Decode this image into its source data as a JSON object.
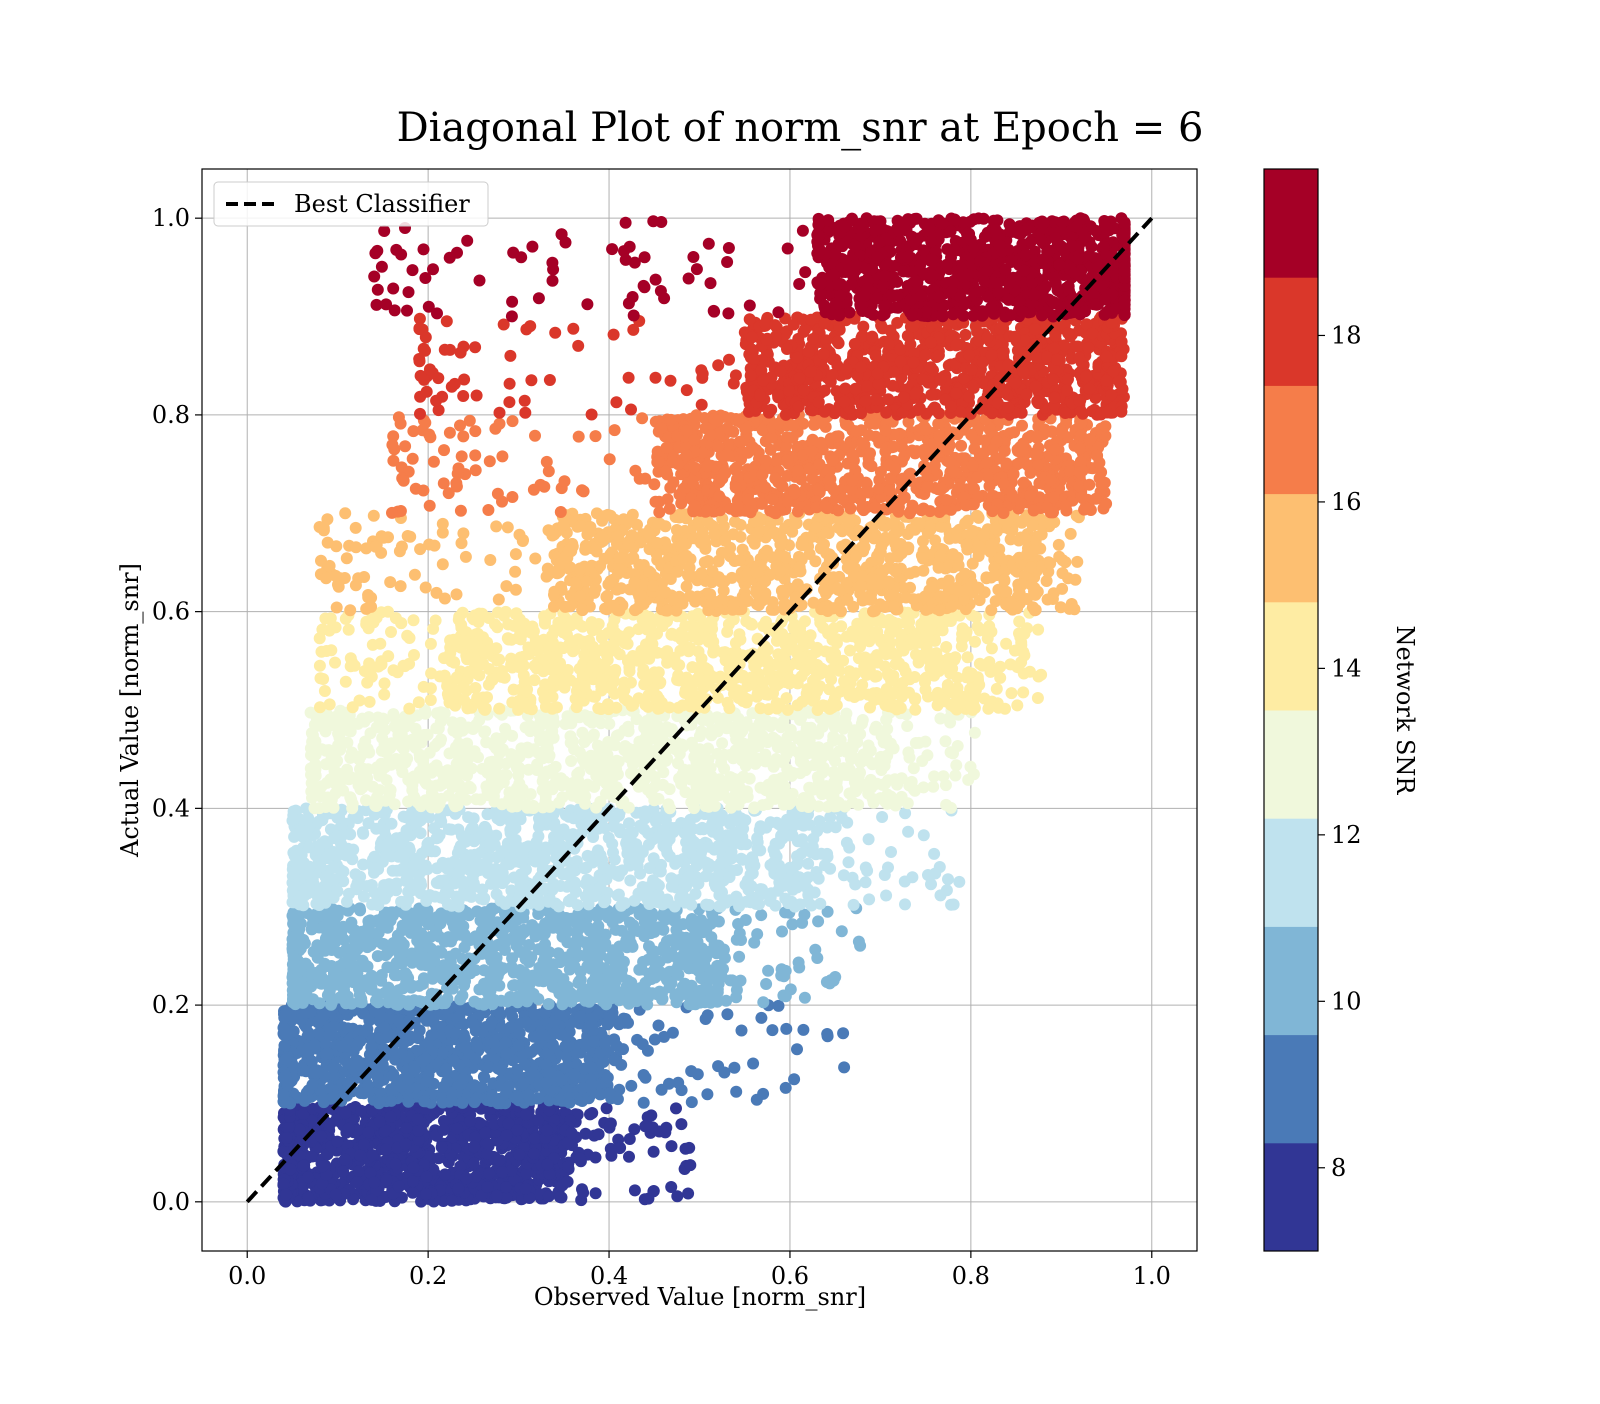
{
  "chart_data": {
    "type": "scatter",
    "title": "Diagonal Plot of norm_snr at Epoch = 6",
    "xlabel": "Observed Value [norm_snr]",
    "ylabel": "Actual Value [norm_snr]",
    "xlim": [
      -0.05,
      1.05
    ],
    "ylim": [
      -0.05,
      1.05
    ],
    "x_ticks": [
      "0.0",
      "0.2",
      "0.4",
      "0.6",
      "0.8",
      "1.0"
    ],
    "y_ticks": [
      "0.0",
      "0.2",
      "0.4",
      "0.6",
      "0.8",
      "1.0"
    ],
    "grid": true,
    "legend": {
      "position": "top-left",
      "entries": [
        "Best Classifier"
      ]
    },
    "reference_line": {
      "name": "Best Classifier",
      "style": "dashed",
      "color": "#000000",
      "x": [
        0.0,
        1.0
      ],
      "y": [
        0.0,
        1.0
      ]
    },
    "colorbar": {
      "label": "Network SNR",
      "range": [
        7,
        20
      ],
      "ticks": [
        "8",
        "10",
        "12",
        "14",
        "16",
        "18"
      ],
      "tick_values": [
        8,
        10,
        12,
        14,
        16,
        18
      ],
      "colormap": "RdYlBu_r (discrete)"
    },
    "bands": [
      {
        "snr_range": [
          7.0,
          8.3
        ],
        "color": "#313695",
        "y_range": [
          0.0,
          0.1
        ],
        "x_core": [
          0.05,
          0.35
        ],
        "x_min": 0.04,
        "x_max": 0.49
      },
      {
        "snr_range": [
          8.3,
          9.6
        ],
        "color": "#4a7ab7",
        "y_range": [
          0.1,
          0.2
        ],
        "x_core": [
          0.05,
          0.4
        ],
        "x_min": 0.04,
        "x_max": 0.66
      },
      {
        "snr_range": [
          9.6,
          10.9
        ],
        "color": "#80b6d6",
        "y_range": [
          0.2,
          0.3
        ],
        "x_core": [
          0.06,
          0.52
        ],
        "x_min": 0.05,
        "x_max": 0.68
      },
      {
        "snr_range": [
          10.9,
          12.2
        ],
        "color": "#bfe2ee",
        "y_range": [
          0.3,
          0.4
        ],
        "x_core": [
          0.07,
          0.62
        ],
        "x_min": 0.05,
        "x_max": 0.79
      },
      {
        "snr_range": [
          12.2,
          13.5
        ],
        "color": "#f0f8dc",
        "y_range": [
          0.4,
          0.5
        ],
        "x_core": [
          0.1,
          0.7
        ],
        "x_min": 0.07,
        "x_max": 0.81
      },
      {
        "snr_range": [
          13.5,
          14.8
        ],
        "color": "#feeca3",
        "y_range": [
          0.5,
          0.6
        ],
        "x_core": [
          0.22,
          0.8
        ],
        "x_min": 0.08,
        "x_max": 0.88
      },
      {
        "snr_range": [
          14.8,
          16.1
        ],
        "color": "#fdbf71",
        "y_range": [
          0.6,
          0.7
        ],
        "x_core": [
          0.33,
          0.86
        ],
        "x_min": 0.08,
        "x_max": 0.92
      },
      {
        "snr_range": [
          16.1,
          17.4
        ],
        "color": "#f57d4a",
        "y_range": [
          0.7,
          0.8
        ],
        "x_core": [
          0.45,
          0.92
        ],
        "x_min": 0.16,
        "x_max": 0.95
      },
      {
        "snr_range": [
          17.4,
          18.7
        ],
        "color": "#da372a",
        "y_range": [
          0.8,
          0.9
        ],
        "x_core": [
          0.55,
          0.95
        ],
        "x_min": 0.19,
        "x_max": 0.97
      },
      {
        "snr_range": [
          18.7,
          20.0
        ],
        "color": "#a50026",
        "y_range": [
          0.9,
          1.0
        ],
        "x_core": [
          0.63,
          0.97
        ],
        "x_min": 0.14,
        "x_max": 0.97
      }
    ]
  }
}
